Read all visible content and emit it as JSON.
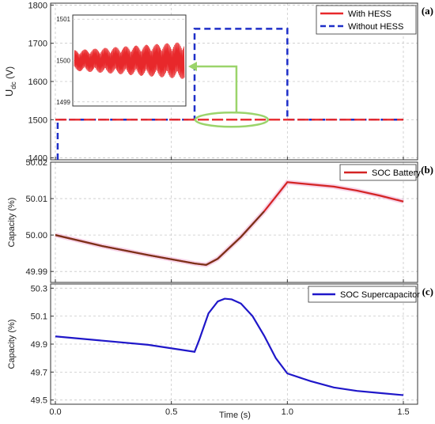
{
  "chart_data": [
    {
      "id": "a",
      "type": "line",
      "panel_label": "(a)",
      "ylabel_main": "U",
      "ylabel_sub": "dc",
      "ylabel_unit": " (V)",
      "xlim": [
        0,
        1.5
      ],
      "ylim": [
        1395,
        1805
      ],
      "yticks": [
        1400,
        1500,
        1600,
        1700,
        1800
      ],
      "grid": true,
      "legend_position": "top-right",
      "series": [
        {
          "name": "With HESS",
          "color": "#e8282b",
          "dash": "solid",
          "x": [
            0.0,
            0.6,
            0.6,
            1.0,
            1.0,
            1.5
          ],
          "y": [
            1500,
            1500,
            1500,
            1500,
            1500,
            1500
          ]
        },
        {
          "name": "Without HESS",
          "color": "#1e2fc8",
          "dash": "dashed",
          "x": [
            0.01,
            0.01,
            0.6,
            0.6,
            1.0,
            1.0,
            1.5
          ],
          "y": [
            1395,
            1500,
            1500,
            1738,
            1738,
            1500,
            1500
          ]
        }
      ],
      "inset": {
        "ylim": [
          1498.9,
          1501.1
        ],
        "yticks": [
          1499,
          1500,
          1501
        ],
        "series_color": "#e8282b",
        "oscillation_center": 1500,
        "oscillation_amplitude": [
          0.25,
          0.45
        ]
      },
      "annotation_color": "#9bd46b"
    },
    {
      "id": "b",
      "type": "line",
      "panel_label": "(b)",
      "ylabel": "Capacity (%)",
      "xlim": [
        0,
        1.5
      ],
      "ylim": [
        49.987,
        50.02
      ],
      "yticks": [
        49.99,
        50.0,
        50.01,
        50.02
      ],
      "ytick_labels": [
        "49.99",
        "50.00",
        "50.01",
        "50.02"
      ],
      "grid": true,
      "legend_position": "top-right",
      "series": [
        {
          "name": "SOC Battery",
          "color": "#d42424",
          "x": [
            0.0,
            0.2,
            0.4,
            0.6,
            0.65,
            0.7,
            0.8,
            0.9,
            1.0,
            1.1,
            1.2,
            1.3,
            1.4,
            1.5
          ],
          "y": [
            50.0,
            49.997,
            49.9945,
            49.9922,
            49.9918,
            49.9935,
            49.9995,
            50.0065,
            50.0145,
            50.0139,
            50.0133,
            50.0122,
            50.0108,
            50.0092
          ]
        }
      ]
    },
    {
      "id": "c",
      "type": "line",
      "panel_label": "(c)",
      "ylabel": "Capacity (%)",
      "xlabel": "Time (s)",
      "xlim": [
        0,
        1.5
      ],
      "xticks": [
        0.0,
        0.5,
        1.0,
        1.5
      ],
      "xtick_labels": [
        "0.0",
        "0.5",
        "1.0",
        "1.5"
      ],
      "ylim": [
        49.47,
        50.33
      ],
      "yticks": [
        49.5,
        49.7,
        49.9,
        50.1,
        50.3
      ],
      "ytick_labels": [
        "49.5",
        "49.7",
        "49.9",
        "50.1",
        "50.3"
      ],
      "grid": true,
      "legend_position": "top-right",
      "series": [
        {
          "name": "SOC Supercapacitor",
          "color": "#1f17c9",
          "x": [
            0.0,
            0.2,
            0.4,
            0.6,
            0.62,
            0.66,
            0.7,
            0.73,
            0.76,
            0.8,
            0.85,
            0.9,
            0.95,
            1.0,
            1.1,
            1.2,
            1.3,
            1.4,
            1.5
          ],
          "y": [
            49.955,
            49.925,
            49.895,
            49.845,
            49.93,
            50.12,
            50.205,
            50.225,
            50.22,
            50.19,
            50.1,
            49.96,
            49.8,
            49.69,
            49.635,
            49.59,
            49.565,
            49.55,
            49.535
          ]
        }
      ]
    }
  ]
}
